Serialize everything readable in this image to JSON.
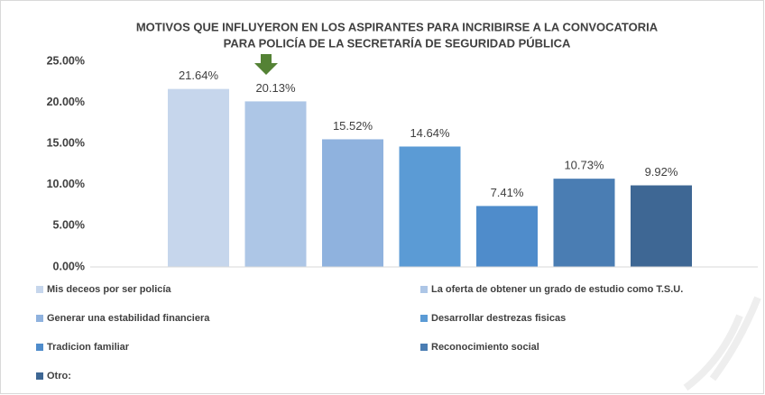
{
  "chart_data": {
    "type": "bar",
    "title": [
      "MOTIVOS QUE INFLUYERON EN LOS ASPIRANTES PARA INCRIBIRSE A LA CONVOCATORIA",
      "PARA POLICÍA DE LA SECRETARÍA DE SEGURIDAD PÚBLICA"
    ],
    "series": [
      {
        "name": "Mis deceos por ser policía",
        "color": "#c6d6ec",
        "values": [
          21.64
        ],
        "value_labels": [
          "21.64%"
        ]
      },
      {
        "name": "La oferta de obtener un grado de estudio como T.S.U.",
        "color": "#adc6e6",
        "values": [
          20.13
        ],
        "value_labels": [
          "20.13%"
        ]
      },
      {
        "name": "Generar una estabilidad financiera",
        "color": "#8fb2de",
        "values": [
          15.52
        ],
        "value_labels": [
          "15.52%"
        ]
      },
      {
        "name": "Desarrollar destrezas fisicas",
        "color": "#5b9bd5",
        "values": [
          14.64
        ],
        "value_labels": [
          "14.64%"
        ]
      },
      {
        "name": "Tradicion familiar",
        "color": "#4f8ccb",
        "values": [
          7.41
        ],
        "value_labels": [
          "7.41%"
        ]
      },
      {
        "name": "Reconocimiento social",
        "color": "#4a7db3",
        "values": [
          10.73
        ],
        "value_labels": [
          "10.73%"
        ]
      },
      {
        "name": "Otro:",
        "color": "#3e6794",
        "values": [
          9.92
        ],
        "value_labels": [
          "9.92%"
        ]
      }
    ],
    "ylim": [
      0,
      25
    ],
    "yticks": [
      {
        "value": 0,
        "label": "0.00%"
      },
      {
        "value": 5,
        "label": "5.00%"
      },
      {
        "value": 10,
        "label": "10.00%"
      },
      {
        "value": 15,
        "label": "15.00%"
      },
      {
        "value": 20,
        "label": "20.00%"
      },
      {
        "value": 25,
        "label": "25.00%"
      }
    ],
    "grid": false
  }
}
